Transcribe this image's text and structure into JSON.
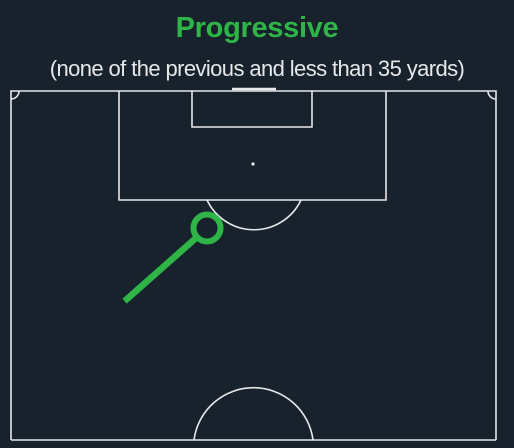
{
  "header": {
    "title": "Progressive",
    "subtitle": "(none of the previous and less than 35 yards)"
  },
  "colors": {
    "background": "#18222c",
    "pitch_lines": "#e6e8ea",
    "pass_arrow": "#2fb547",
    "title": "#2fb547"
  },
  "pass_arrow": {
    "icon": "pass-arrow-icon",
    "end_marker": "circle",
    "category": "progressive"
  }
}
